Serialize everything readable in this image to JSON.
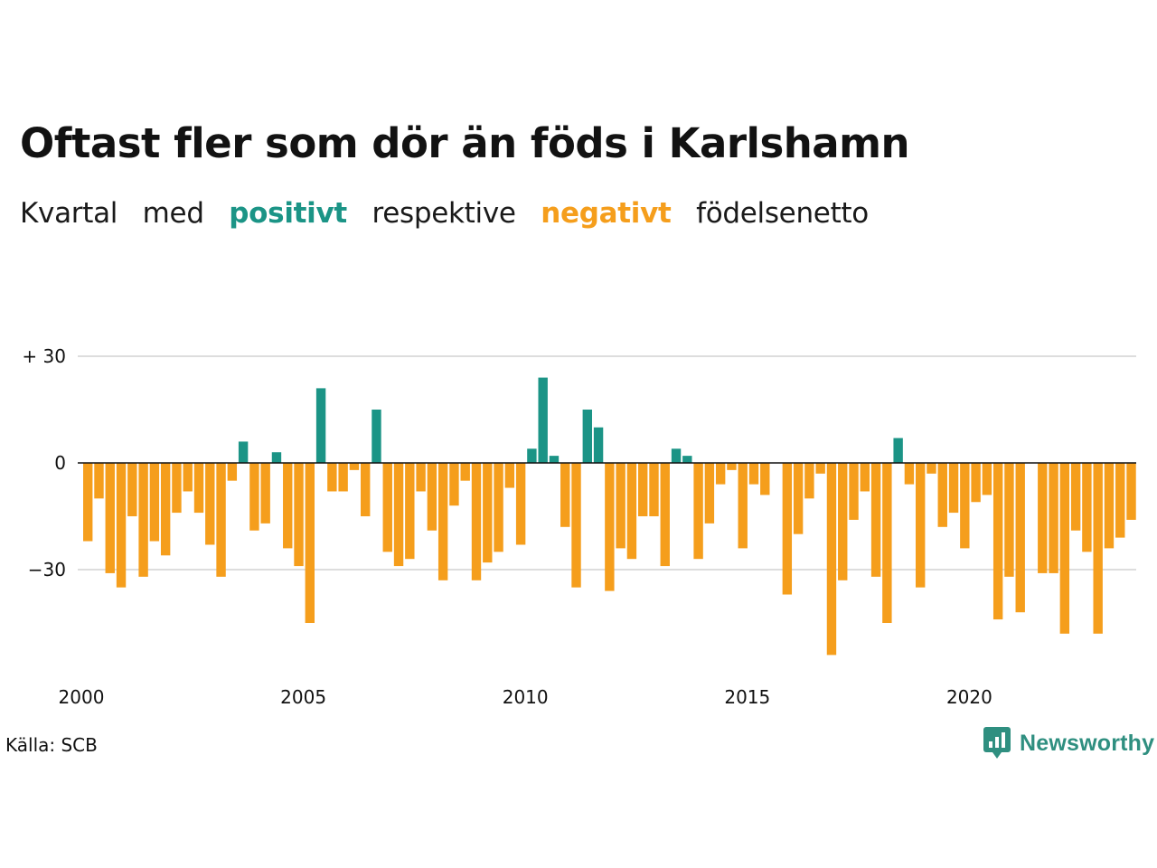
{
  "title": "Oftast fler som dör än föds i Karlshamn",
  "subtitle": {
    "part1": "Kvartal",
    "part2": "med",
    "positive_word": "positivt",
    "part3": "respektive",
    "negative_word": "negativt",
    "part4": "födelsenetto"
  },
  "colors": {
    "positive": "#1b9486",
    "negative": "#f59e1c",
    "grid": "#dddddd",
    "zero_line": "#111111"
  },
  "source": "Källa: SCB",
  "brand": {
    "name": "Newsworthy",
    "icon": "newsworthy-logo-icon"
  },
  "chart_data": {
    "type": "bar",
    "x_start": "2000-Q1",
    "frequency": "quarter",
    "x_ticks": [
      "2000",
      "2005",
      "2010",
      "2015",
      "2020"
    ],
    "y_ticks": [
      {
        "value": 30,
        "label": "+ 30"
      },
      {
        "value": 0,
        "label": "0"
      },
      {
        "value": -30,
        "label": "−30"
      }
    ],
    "ylim": [
      -56,
      36
    ],
    "grid": true,
    "values": [
      -22,
      -10,
      -31,
      -35,
      -15,
      -32,
      -22,
      -26,
      -14,
      -8,
      -14,
      -23,
      -32,
      -5,
      6,
      -19,
      -17,
      3,
      -24,
      -29,
      -45,
      21,
      -8,
      -8,
      -2,
      -15,
      15,
      -25,
      -29,
      -27,
      -8,
      -19,
      -33,
      -12,
      -5,
      -33,
      -28,
      -25,
      -7,
      -23,
      4,
      24,
      2,
      -18,
      -35,
      15,
      10,
      -36,
      -24,
      -27,
      -15,
      -15,
      -29,
      4,
      2,
      -27,
      -17,
      -6,
      -2,
      -24,
      -6,
      -9,
      null,
      -37,
      -20,
      -10,
      -3,
      -54,
      -33,
      -16,
      -8,
      -32,
      -45,
      7,
      -6,
      -35,
      -3,
      -18,
      -14,
      -24,
      -11,
      -9,
      -44,
      -32,
      -42,
      null,
      -31,
      -31,
      -48,
      -19,
      -25,
      -48,
      -24,
      -21,
      -16
    ]
  }
}
